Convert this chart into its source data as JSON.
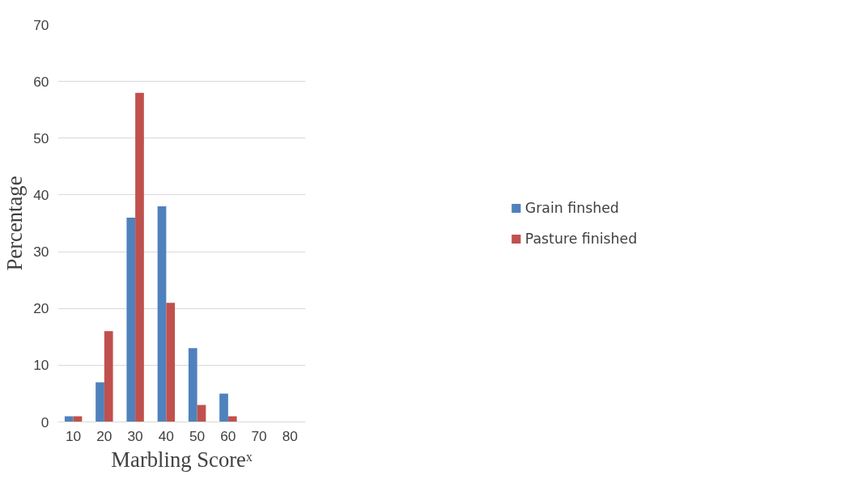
{
  "chart_data": {
    "type": "bar",
    "xlabel": "Marbling Scoreˣ",
    "ylabel": "Percentage",
    "categories": [
      "10",
      "20",
      "30",
      "40",
      "50",
      "60",
      "70",
      "80"
    ],
    "series": [
      {
        "name": "Grain finshed",
        "color": "#4f81bd",
        "values": [
          1,
          7,
          36,
          38,
          13,
          5,
          0,
          0
        ]
      },
      {
        "name": "Pasture finished",
        "color": "#c0504d",
        "values": [
          1,
          16,
          58,
          21,
          3,
          1,
          0,
          0
        ]
      }
    ],
    "ylim": [
      0,
      70
    ],
    "yticks": [
      0,
      10,
      20,
      30,
      40,
      50,
      60,
      70
    ],
    "grid": "y",
    "legend": "right"
  }
}
